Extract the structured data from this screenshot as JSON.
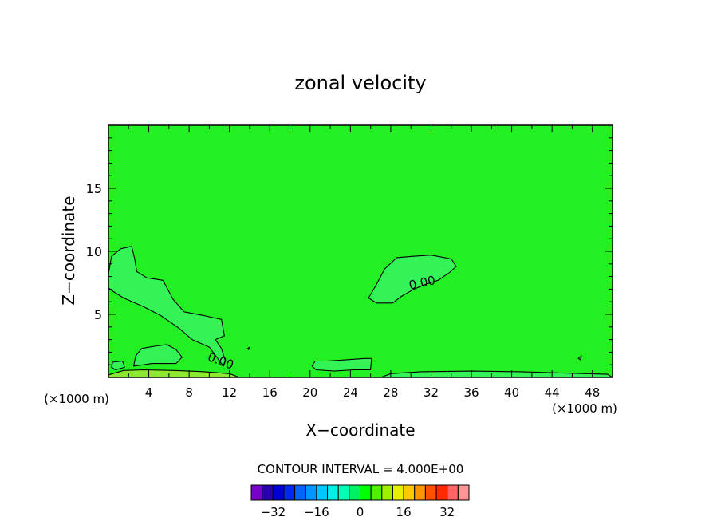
{
  "chart_data": {
    "type": "heatmap",
    "title": "zonal velocity",
    "xlabel": "X−coordinate",
    "ylabel": "Z−coordinate",
    "x_unit_left": "(×1000 m)",
    "x_unit_right": "(×1000 m)",
    "xlim": [
      0,
      50
    ],
    "ylim": [
      0,
      20
    ],
    "x_ticks": [
      4,
      8,
      12,
      16,
      20,
      24,
      28,
      32,
      36,
      40,
      44,
      48
    ],
    "y_ticks": [
      5,
      10,
      15
    ],
    "contour_labels": [
      {
        "text": "0.00",
        "x": 31.2,
        "y": 7.2
      },
      {
        "text": "0.00",
        "x": 11.0,
        "y": 1.0
      }
    ],
    "contour_interval": "CONTOUR INTERVAL = 4.000E+00",
    "colorbar": {
      "levels": [
        -36,
        -32,
        -28,
        -24,
        -20,
        -16,
        -12,
        -8,
        -4,
        0,
        4,
        8,
        12,
        16,
        20,
        24,
        28,
        32,
        36
      ],
      "tick_labels": [
        "−32",
        "−16",
        "0",
        "16",
        "32"
      ],
      "tick_values": [
        -32,
        -16,
        0,
        16,
        32
      ],
      "colors": [
        "#7a00c8",
        "#2a00b4",
        "#0000d2",
        "#0028f0",
        "#0064ff",
        "#0096ff",
        "#00c8ff",
        "#00f0e6",
        "#00ffb4",
        "#00f064",
        "#00ff00",
        "#50f000",
        "#a0f000",
        "#e6f000",
        "#ffc800",
        "#ff9600",
        "#ff5000",
        "#ff2800",
        "#ff6464",
        "#ff9696"
      ]
    },
    "background_color": "#23f023",
    "positive_region_color": "#34f356",
    "surface_color": "#8ce830"
  }
}
